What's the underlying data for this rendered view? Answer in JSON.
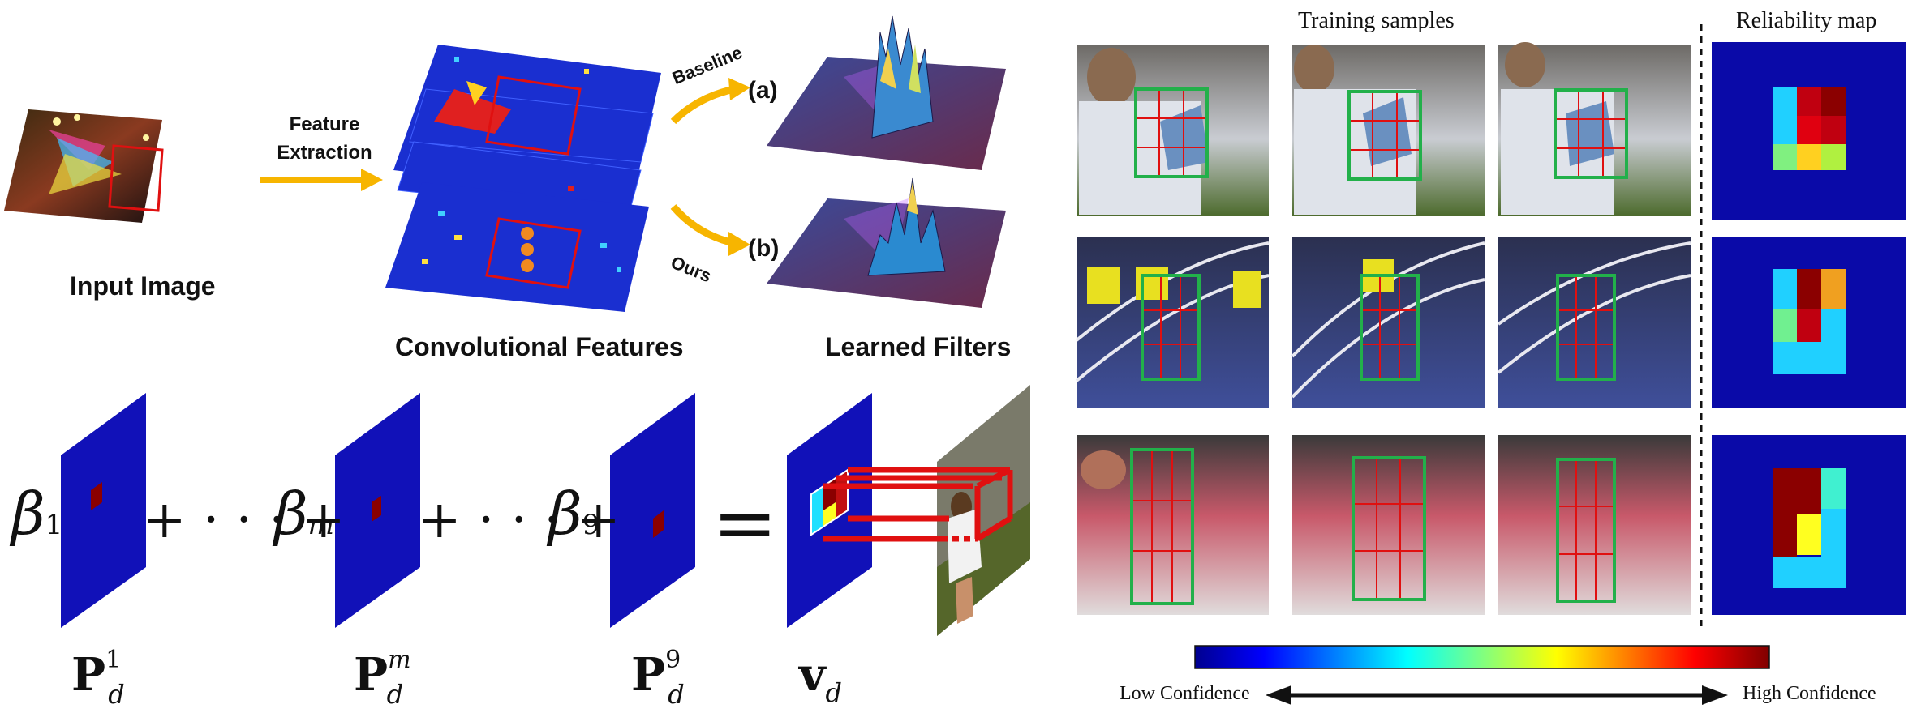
{
  "top_left": {
    "input_image_label": "Input Image",
    "feature_extraction_line1": "Feature",
    "feature_extraction_line2": "Extraction",
    "conv_features_label": "Convolutional Features",
    "baseline_label": "Baseline",
    "ours_label": "Ours",
    "branch_a": "(a)",
    "branch_b": "(b)",
    "learned_filters_label": "Learned Filters"
  },
  "equation": {
    "beta_1": "β",
    "beta_1_sub": "1",
    "plus_dots": "+ · · · +",
    "beta_m": "β",
    "beta_m_sub": "m",
    "beta_9": "β",
    "beta_9_sub": "9",
    "equals": "=",
    "p_d_1": "P",
    "p_d_1_sup": "1",
    "p_d_1_sub": "d",
    "p_d_m": "P",
    "p_d_m_sup": "m",
    "p_d_m_sub": "d",
    "p_d_9": "P",
    "p_d_9_sup": "9",
    "p_d_9_sub": "d",
    "v_d": "v",
    "v_d_sub": "d"
  },
  "right_panel": {
    "training_samples_label": "Training samples",
    "reliability_map_label": "Reliability map",
    "low_confidence": "Low Confidence",
    "high_confidence": "High Confidence"
  },
  "colors": {
    "jet_blue": "#1010c8",
    "track_red": "#e01010",
    "box_green": "#22b04a",
    "arrow_yellow": "#f7b500"
  }
}
